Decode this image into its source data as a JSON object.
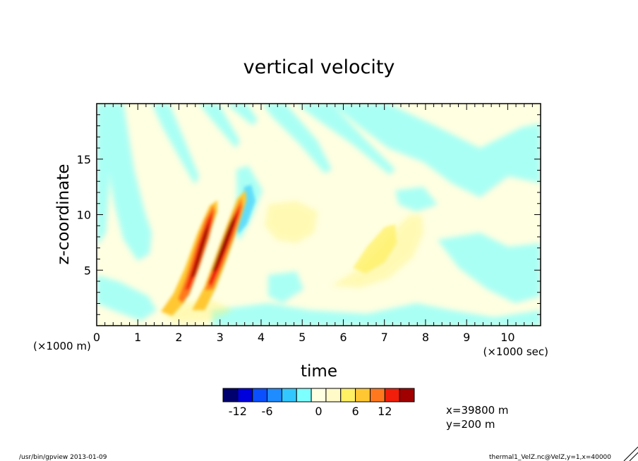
{
  "chart_data": {
    "type": "heatmap",
    "title": "vertical velocity",
    "xlabel": "time",
    "ylabel": "z-coordinate",
    "x_unit": "(×1000 sec)",
    "y_unit": "(×1000 m)",
    "xlim": [
      0,
      10.8
    ],
    "ylim": [
      0,
      20
    ],
    "x_ticks": [
      0,
      1,
      2,
      3,
      4,
      5,
      6,
      7,
      8,
      9,
      10
    ],
    "y_ticks": [
      5,
      10,
      15
    ],
    "grid": false,
    "colorbar": {
      "tick_labels": [
        "-12",
        "-6",
        "0",
        "6",
        "12"
      ],
      "colors": [
        "#00006e",
        "#0000dc",
        "#0a50ff",
        "#1e8cff",
        "#32c8ff",
        "#7dffff",
        "#ffffe1",
        "#fffac8",
        "#fff064",
        "#ffc832",
        "#ff781e",
        "#f01e0a",
        "#a00000"
      ]
    },
    "annotations": [
      "x=39800 m",
      "y=200 m"
    ],
    "features": [
      {
        "value": 14,
        "x": 2.55,
        "z": 7.5,
        "note": "positive band core"
      },
      {
        "value": 14,
        "x": 3.05,
        "z": 8.5,
        "note": "positive band core"
      },
      {
        "value": -4,
        "x": 3.6,
        "z": 10.5,
        "note": "negative band"
      },
      {
        "value": 5,
        "x": 6.7,
        "z": 7.2,
        "note": "positive region"
      }
    ]
  },
  "footer": {
    "left": "/usr/bin/gpview  2013-01-09",
    "right": "thermal1_VelZ.nc@VelZ,y=1,x=40000"
  }
}
